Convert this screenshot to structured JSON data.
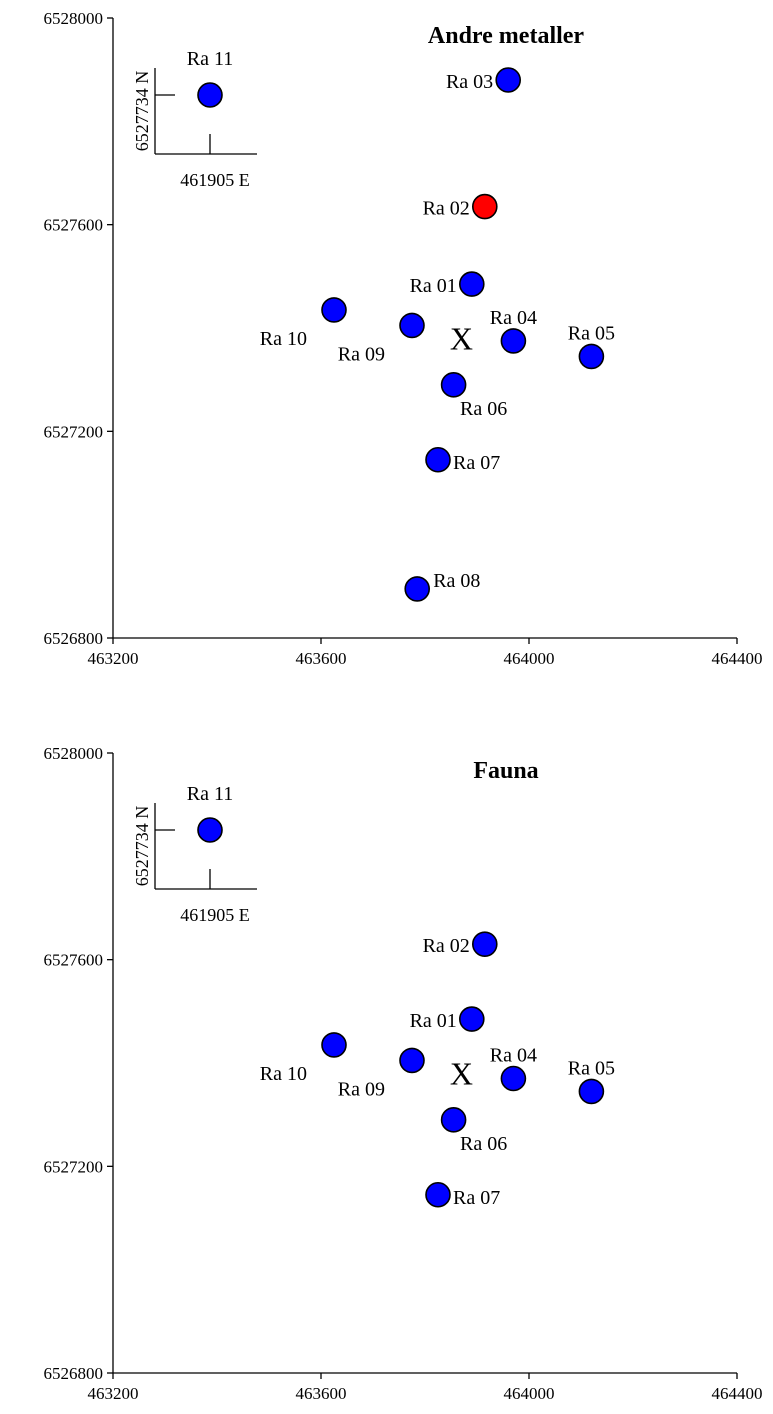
{
  "chart_data": [
    {
      "type": "scatter",
      "title": "Andre metaller",
      "xlim": [
        463200,
        464400
      ],
      "ylim": [
        6526800,
        6528000
      ],
      "x_ticks": [
        "463200",
        "463600",
        "464000",
        "464400"
      ],
      "y_ticks": [
        "6528000",
        "6527600",
        "6527200",
        "6526800"
      ],
      "site_marker": {
        "label": "X",
        "x": 463870,
        "y": 6527380
      },
      "points": [
        {
          "name": "Ra 01",
          "x": 463890,
          "y": 6527485,
          "color": "#0000ff",
          "label_pos": "left"
        },
        {
          "name": "Ra 02",
          "x": 463915,
          "y": 6527635,
          "color": "#ff0000",
          "label_pos": "left"
        },
        {
          "name": "Ra 03",
          "x": 463960,
          "y": 6527880,
          "color": "#0000ff",
          "label_pos": "left"
        },
        {
          "name": "Ra 04",
          "x": 463970,
          "y": 6527375,
          "color": "#0000ff",
          "label_pos": "above"
        },
        {
          "name": "Ra 05",
          "x": 464120,
          "y": 6527345,
          "color": "#0000ff",
          "label_pos": "above"
        },
        {
          "name": "Ra 06",
          "x": 463855,
          "y": 6527290,
          "color": "#0000ff",
          "label_pos": "below-right"
        },
        {
          "name": "Ra 07",
          "x": 463825,
          "y": 6527145,
          "color": "#0000ff",
          "label_pos": "right"
        },
        {
          "name": "Ra 08",
          "x": 463785,
          "y": 6526895,
          "color": "#0000ff",
          "label_pos": "above-right"
        },
        {
          "name": "Ra 09",
          "x": 463775,
          "y": 6527405,
          "color": "#0000ff",
          "label_pos": "below-left"
        },
        {
          "name": "Ra 10",
          "x": 463625,
          "y": 6527435,
          "color": "#0000ff",
          "label_pos": "below-left"
        }
      ],
      "inset": {
        "point": {
          "name": "Ra 11",
          "color": "#0000ff"
        },
        "x_label": "461905 E",
        "y_label": "6527734 N"
      }
    },
    {
      "type": "scatter",
      "title": "Fauna",
      "xlim": [
        463200,
        464400
      ],
      "ylim": [
        6526800,
        6528000
      ],
      "x_ticks": [
        "463200",
        "463600",
        "464000",
        "464400"
      ],
      "y_ticks": [
        "6528000",
        "6527600",
        "6527200",
        "6526800"
      ],
      "site_marker": {
        "label": "X",
        "x": 463870,
        "y": 6527380
      },
      "points": [
        {
          "name": "Ra 01",
          "x": 463890,
          "y": 6527485,
          "color": "#0000ff",
          "label_pos": "left"
        },
        {
          "name": "Ra 02",
          "x": 463915,
          "y": 6527630,
          "color": "#0000ff",
          "label_pos": "left"
        },
        {
          "name": "Ra 04",
          "x": 463970,
          "y": 6527370,
          "color": "#0000ff",
          "label_pos": "above"
        },
        {
          "name": "Ra 05",
          "x": 464120,
          "y": 6527345,
          "color": "#0000ff",
          "label_pos": "above"
        },
        {
          "name": "Ra 06",
          "x": 463855,
          "y": 6527290,
          "color": "#0000ff",
          "label_pos": "below-right"
        },
        {
          "name": "Ra 07",
          "x": 463825,
          "y": 6527145,
          "color": "#0000ff",
          "label_pos": "right"
        },
        {
          "name": "Ra 09",
          "x": 463775,
          "y": 6527405,
          "color": "#0000ff",
          "label_pos": "below-left"
        },
        {
          "name": "Ra 10",
          "x": 463625,
          "y": 6527435,
          "color": "#0000ff",
          "label_pos": "below-left"
        }
      ],
      "inset": {
        "point": {
          "name": "Ra 11",
          "color": "#0000ff"
        },
        "x_label": "461905 E",
        "y_label": "6527734 N"
      }
    }
  ]
}
